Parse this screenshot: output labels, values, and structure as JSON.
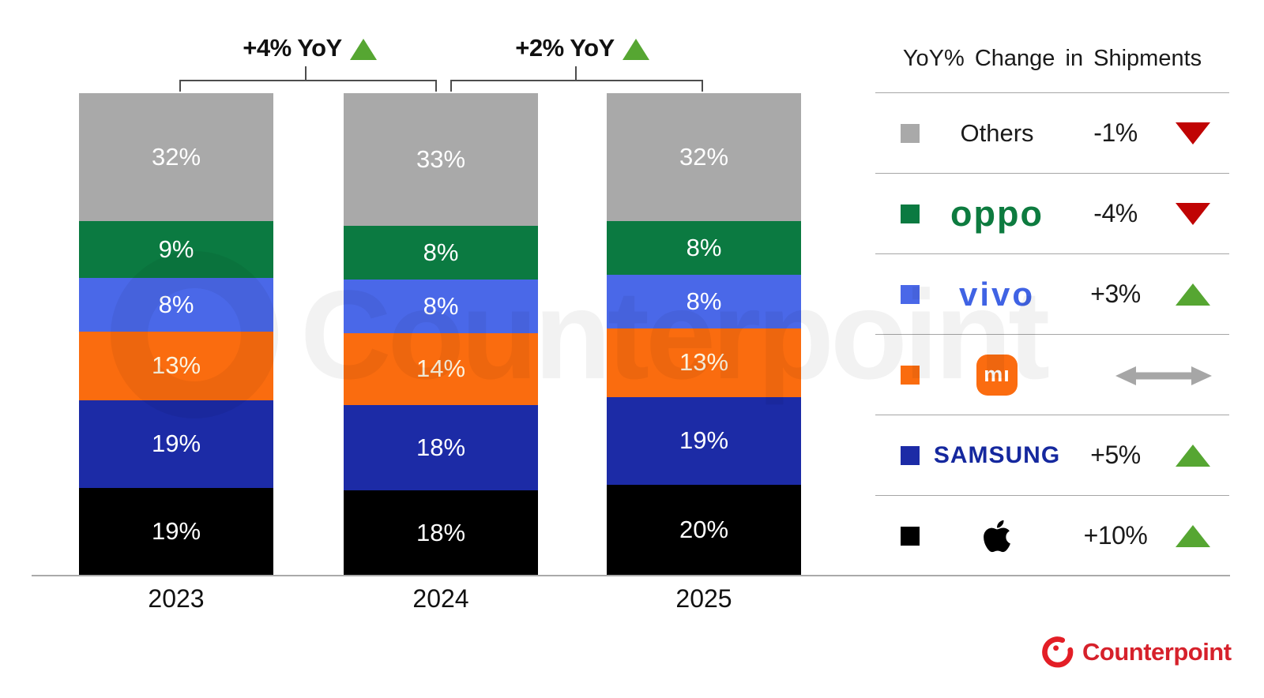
{
  "chart_data": {
    "type": "bar",
    "stacked": true,
    "title": "",
    "categories": [
      "2023",
      "2024",
      "2025"
    ],
    "series": [
      {
        "name": "Others",
        "color": "#a9a9a9",
        "values": [
          32,
          33,
          32
        ]
      },
      {
        "name": "OPPO",
        "color": "#0b7a41",
        "values": [
          9,
          8,
          8
        ]
      },
      {
        "name": "vivo",
        "color": "#4a68e8",
        "values": [
          8,
          8,
          8
        ]
      },
      {
        "name": "Xiaomi",
        "color": "#fa6c0f",
        "values": [
          13,
          14,
          13
        ]
      },
      {
        "name": "Samsung",
        "color": "#1c2ba6",
        "values": [
          19,
          18,
          19
        ]
      },
      {
        "name": "Apple",
        "color": "#000000",
        "values": [
          19,
          18,
          20
        ]
      }
    ],
    "value_suffix": "%",
    "ylim": [
      0,
      100
    ],
    "grid": false,
    "annotations": [
      {
        "label": "+4% YoY",
        "from": "2023",
        "to": "2024",
        "direction": "up"
      },
      {
        "label": "+2% YoY",
        "from": "2024",
        "to": "2025",
        "direction": "up"
      }
    ]
  },
  "legend": {
    "title": "YoY% Change in Shipments",
    "up_color": "#56a632",
    "down_color": "#c00404",
    "flat_color": "#a6a6a6",
    "rows": [
      {
        "brand": "Others",
        "label": "Others",
        "color": "#a9a9a9",
        "change": "-1%",
        "direction": "down"
      },
      {
        "brand": "OPPO",
        "label": "oppo",
        "color": "#0b7a41",
        "change": "-4%",
        "direction": "down"
      },
      {
        "brand": "vivo",
        "label": "vivo",
        "color": "#4a68e8",
        "change": "+3%",
        "direction": "up"
      },
      {
        "brand": "Xiaomi",
        "label": "mı",
        "color": "#fa6c0f",
        "change": "",
        "direction": "flat"
      },
      {
        "brand": "Samsung",
        "label": "SAMSUNG",
        "color": "#1c2ba6",
        "change": "+5%",
        "direction": "up"
      },
      {
        "brand": "Apple",
        "label": "",
        "color": "#000000",
        "change": "+10%",
        "direction": "up"
      }
    ]
  },
  "branding": {
    "logo_text": "Counterpoint",
    "logo_color": "#d6212b"
  },
  "watermark": {
    "text": "Counterpoint"
  }
}
